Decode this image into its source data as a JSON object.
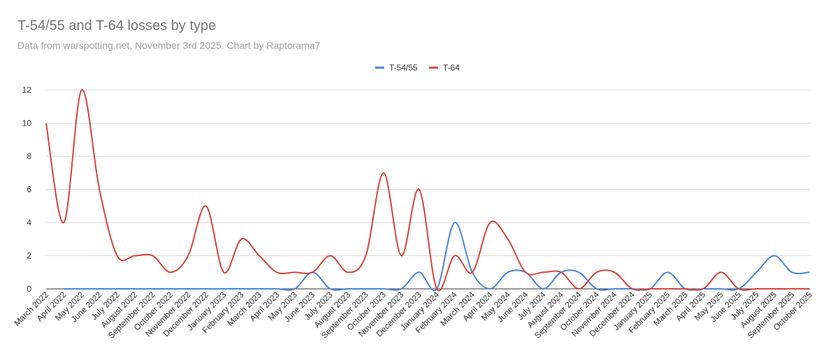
{
  "title": "T-54/55 and T-64 losses by type",
  "subtitle": "Data from warspotting.net, November 3rd 2025. Chart by Raptorama7",
  "colors": {
    "series_a": "#4a86d8",
    "series_b": "#d4443a",
    "grid": "#d9d9d9",
    "text": "#333333"
  },
  "chart_data": {
    "type": "line",
    "title": "T-54/55 and T-64 losses by type",
    "subtitle": "Data from warspotting.net, November 3rd 2025. Chart by Raptorama7",
    "xlabel": "",
    "ylabel": "",
    "ylim": [
      0,
      12
    ],
    "yticks": [
      0,
      2,
      4,
      6,
      8,
      10,
      12
    ],
    "grid": true,
    "legend": "top-center",
    "smooth": true,
    "categories": [
      "March 2022",
      "April 2022",
      "May 2022",
      "June 2022",
      "July 2022",
      "August 2022",
      "September 2022",
      "October 2022",
      "November 2022",
      "December 2022",
      "January 2023",
      "February 2023",
      "March 2023",
      "April 2023",
      "May 2023",
      "June 2023",
      "July 2023",
      "August 2023",
      "September 2023",
      "October 2023",
      "November 2023",
      "December 2023",
      "January 2024",
      "February 2024",
      "March 2024",
      "April 2024",
      "May 2024",
      "June 2024",
      "July 2024",
      "August 2024",
      "September 2024",
      "October 2024",
      "November 2024",
      "December 2024",
      "January 2025",
      "February 2025",
      "March 2025",
      "April 2025",
      "May 2025",
      "June 2025",
      "July 2025",
      "August 2025",
      "September 2025",
      "October 2025"
    ],
    "series": [
      {
        "name": "T-54/55",
        "values": [
          null,
          0,
          0,
          0,
          0,
          0,
          0,
          0,
          0,
          0,
          0,
          0,
          0,
          0,
          0,
          1,
          0,
          0,
          0,
          0,
          0,
          1,
          0,
          4,
          1,
          0,
          1,
          1,
          0,
          1,
          1,
          0,
          0,
          0,
          0,
          1,
          0,
          0,
          0,
          0,
          1,
          2,
          1,
          1
        ]
      },
      {
        "name": "T-64",
        "values": [
          10,
          4,
          12,
          6,
          2,
          2,
          2,
          1,
          2,
          5,
          1,
          3,
          2,
          1,
          1,
          1,
          2,
          1,
          2,
          7,
          2,
          6,
          0,
          2,
          1,
          4,
          3,
          1,
          1,
          1,
          0,
          1,
          1,
          0,
          0,
          0,
          0,
          0,
          1,
          0,
          0,
          0,
          0,
          0
        ]
      }
    ]
  }
}
